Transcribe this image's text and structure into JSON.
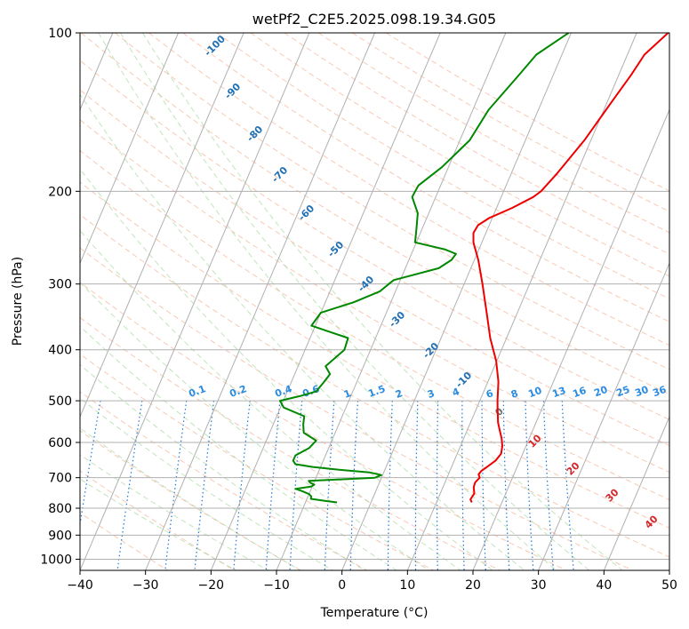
{
  "chart_data": {
    "type": "line",
    "title": "wetPf2_C2E5.2025.098.19.34.G05",
    "xlabel": "Temperature (°C)",
    "ylabel": "Pressure (hPa)",
    "xlim": [
      -40,
      50
    ],
    "ylim": [
      1050,
      100
    ],
    "y_scale": "log",
    "x_ticks": [
      -40,
      -30,
      -20,
      -10,
      0,
      10,
      20,
      30,
      40,
      50
    ],
    "y_ticks": [
      100,
      200,
      300,
      400,
      500,
      600,
      700,
      800,
      900,
      1000
    ],
    "grid": true,
    "series": [
      {
        "color": "#ee0000",
        "pressure": [
          780,
          770,
          750,
          730,
          715,
          700,
          690,
          680,
          670,
          650,
          630,
          610,
          590,
          570,
          550,
          520,
          500,
          460,
          420,
          380,
          340,
          300,
          270,
          250,
          240,
          232,
          225,
          215,
          205,
          200,
          185,
          160,
          135,
          120,
          110,
          100
        ],
        "temperature": [
          15.4,
          15.0,
          15.2,
          14.7,
          14.6,
          15.0,
          14.6,
          14.8,
          15.3,
          16.3,
          16.7,
          16.4,
          15.8,
          15.0,
          14.2,
          13.3,
          12.7,
          11.6,
          9.9,
          7.5,
          5.3,
          2.8,
          0.6,
          -1.3,
          -1.9,
          -1.7,
          -0.5,
          2.4,
          4.9,
          5.7,
          7.0,
          9.0,
          10.7,
          11.9,
          12.6,
          14.8
        ]
      },
      {
        "color": "#008800",
        "pressure": [
          780,
          775,
          768,
          760,
          752,
          742,
          735,
          728,
          722,
          715,
          710,
          705,
          700,
          692,
          684,
          676,
          668,
          660,
          650,
          635,
          615,
          595,
          575,
          555,
          535,
          515,
          500,
          490,
          480,
          460,
          445,
          430,
          400,
          380,
          360,
          340,
          325,
          310,
          300,
          295,
          280,
          270,
          263,
          258,
          250,
          235,
          220,
          205,
          195,
          180,
          160,
          140,
          120,
          110,
          100
        ],
        "temperature": [
          -5.2,
          -7.0,
          -9.4,
          -9.5,
          -10.0,
          -11.3,
          -12.4,
          -10.2,
          -9.8,
          -10.6,
          -10.9,
          -5.8,
          -1.0,
          -0.2,
          -2.2,
          -7.0,
          -11.2,
          -14.0,
          -14.6,
          -14.6,
          -13.0,
          -12.4,
          -14.8,
          -15.4,
          -15.8,
          -19.5,
          -20.5,
          -17.8,
          -15.6,
          -15.0,
          -14.6,
          -15.8,
          -14.0,
          -14.2,
          -20.6,
          -20.0,
          -15.7,
          -12.4,
          -11.5,
          -11.0,
          -4.9,
          -3.5,
          -3.2,
          -5.1,
          -10.2,
          -10.9,
          -11.7,
          -13.6,
          -13.4,
          -11.0,
          -8.5,
          -7.6,
          -5.2,
          -3.9,
          -0.4
        ]
      }
    ],
    "dry_adiabat_labels": [
      "-100",
      "-90",
      "-80",
      "-70",
      "-60",
      "-50",
      "-40",
      "-30",
      "-20",
      "-10",
      "0",
      "10",
      "20",
      "30",
      "40"
    ],
    "mixing_ratio_labels": [
      "0.1",
      "0.2",
      "0.4",
      "0.6",
      "1",
      "1.5",
      "2",
      "3",
      "4",
      "6",
      "8",
      "10",
      "13",
      "16",
      "20",
      "25",
      "30",
      "36"
    ]
  }
}
